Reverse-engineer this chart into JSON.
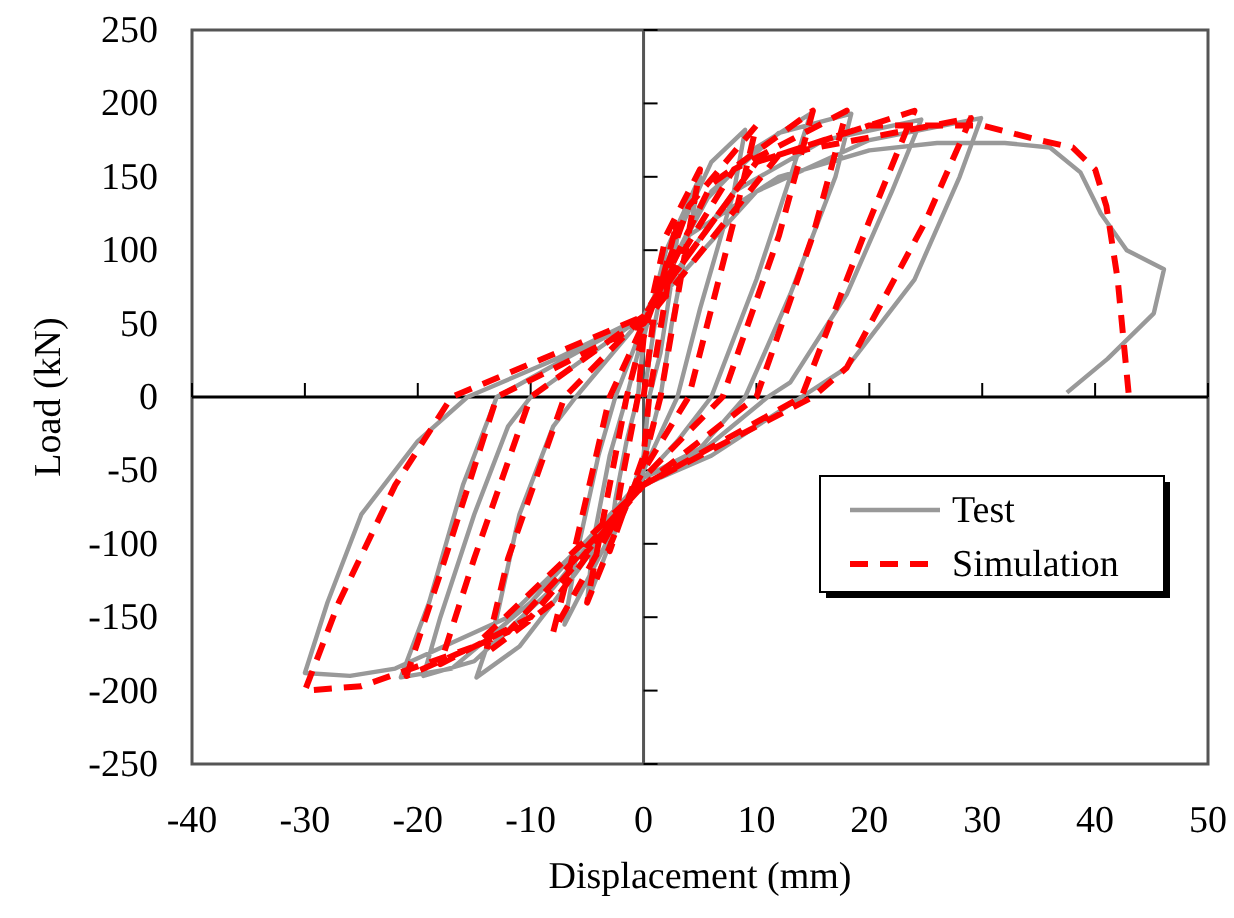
{
  "chart_data": {
    "type": "line",
    "xlabel": "Displacement (mm)",
    "ylabel": "Load (kN)",
    "xlim": [
      -40,
      50
    ],
    "xticks": [
      -40,
      -30,
      -20,
      -10,
      0,
      10,
      20,
      30,
      40,
      50
    ],
    "ylim": [
      -250,
      250
    ],
    "yticks": [
      -250,
      -200,
      -150,
      -100,
      -50,
      0,
      50,
      100,
      150,
      200,
      250
    ],
    "grid": false,
    "legend": "bottom right",
    "series": [
      {
        "name": "Test",
        "color": "#999999",
        "line_style": "solid",
        "x": [
          0,
          1,
          2,
          3,
          2.5,
          1.5,
          0.5,
          0,
          -1.5,
          -3,
          -2.5,
          -1.5,
          -0.5,
          0,
          2,
          5,
          4,
          2.5,
          1.5,
          0,
          -3,
          -5,
          -4.5,
          -3,
          -1.5,
          0,
          3,
          6,
          9,
          8,
          5,
          3,
          0,
          -4,
          -7,
          -6,
          -4,
          -2.5,
          0,
          5,
          10,
          14.8,
          13,
          10,
          6,
          3,
          0,
          -6,
          -11,
          -14.8,
          -13,
          -11,
          -8,
          -6,
          0,
          6,
          12,
          18.4,
          17,
          13,
          9,
          5,
          0,
          -8,
          -15,
          -19.5,
          -18,
          -15,
          -12,
          -10,
          0,
          8,
          16,
          24.6,
          22,
          18,
          13,
          11,
          5,
          0,
          -10,
          -17,
          -21.5,
          -19,
          -16,
          -13,
          -6,
          0,
          10,
          20,
          29.9,
          28,
          24,
          18,
          14,
          6,
          0,
          -12,
          -22,
          -26,
          -30,
          -28,
          -25,
          -20,
          -15.6,
          -8,
          0,
          4,
          12,
          20,
          26,
          32,
          36,
          38.7,
          40.5,
          42.8,
          46.1,
          45.2,
          41.1,
          37.5
        ],
        "values": [
          0,
          50,
          90,
          110,
          80,
          30,
          0,
          -40,
          -75,
          -100,
          -70,
          -30,
          0,
          40,
          100,
          150,
          110,
          50,
          0,
          -45,
          -100,
          -140,
          -100,
          -40,
          0,
          45,
          110,
          160,
          182,
          140,
          60,
          0,
          -50,
          -110,
          -155,
          -110,
          -40,
          0,
          50,
          130,
          170,
          193,
          150,
          80,
          0,
          -30,
          -55,
          -120,
          -170,
          -191,
          -150,
          -80,
          -20,
          0,
          55,
          140,
          180,
          193,
          150,
          70,
          0,
          -35,
          -55,
          -130,
          -180,
          -190,
          -150,
          -80,
          -20,
          0,
          55,
          140,
          175,
          189,
          140,
          70,
          10,
          0,
          -38,
          -55,
          -140,
          -185,
          -191,
          -140,
          -60,
          0,
          30,
          55,
          140,
          175,
          190,
          150,
          80,
          20,
          0,
          -40,
          -60,
          -150,
          -185,
          -190,
          -188,
          -140,
          -80,
          -30,
          0,
          25,
          55,
          110,
          150,
          168,
          173,
          173,
          170,
          153,
          125,
          100,
          87,
          57,
          26,
          3
        ]
      },
      {
        "name": "Simulation",
        "color": "#ff0000",
        "line_style": "dashed",
        "x": [
          0,
          1,
          3,
          2,
          0.5,
          0,
          -3,
          -2,
          -0.5,
          0,
          2,
          5,
          3.5,
          1.5,
          0,
          -5,
          -3.5,
          -1.5,
          0,
          4,
          10,
          8,
          4,
          0,
          -8,
          -6,
          -3,
          0,
          6,
          15,
          12,
          7,
          0,
          -8,
          -14,
          -12,
          -7,
          0,
          8,
          18,
          15,
          10,
          0,
          -10,
          -18,
          -15,
          -10,
          0,
          10,
          24,
          20,
          14,
          0,
          -12,
          -21,
          -18,
          -13,
          0,
          12,
          29,
          25,
          18,
          15,
          0,
          -15,
          -25,
          -30,
          -27,
          -22,
          -17,
          0,
          10,
          20,
          30,
          35,
          38,
          40,
          41,
          42,
          43
        ],
        "values": [
          0,
          60,
          120,
          70,
          0,
          -40,
          -105,
          -60,
          0,
          40,
          110,
          155,
          90,
          0,
          -45,
          -140,
          -80,
          0,
          45,
          130,
          185,
          120,
          0,
          -50,
          -160,
          -100,
          0,
          50,
          145,
          195,
          110,
          0,
          -55,
          -140,
          -175,
          -110,
          0,
          55,
          155,
          195,
          110,
          0,
          -60,
          -150,
          -182,
          -110,
          0,
          55,
          160,
          195,
          120,
          0,
          -60,
          -160,
          -190,
          -120,
          0,
          50,
          165,
          190,
          120,
          20,
          0,
          -60,
          -170,
          -197,
          -200,
          -140,
          -60,
          0,
          55,
          160,
          185,
          185,
          175,
          170,
          155,
          130,
          80,
          0
        ]
      }
    ]
  }
}
